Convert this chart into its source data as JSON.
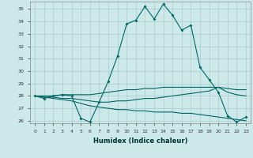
{
  "xlabel": "Humidex (Indice chaleur)",
  "background_color": "#cce8e8",
  "grid_color": "#aacccc",
  "line_color": "#006666",
  "xlim": [
    -0.5,
    23.5
  ],
  "ylim": [
    25.8,
    35.6
  ],
  "yticks": [
    26,
    27,
    28,
    29,
    30,
    31,
    32,
    33,
    34,
    35
  ],
  "xticks": [
    0,
    1,
    2,
    3,
    4,
    5,
    6,
    7,
    8,
    9,
    10,
    11,
    12,
    13,
    14,
    15,
    16,
    17,
    18,
    19,
    20,
    21,
    22,
    23
  ],
  "series1": [
    28.0,
    27.8,
    28.0,
    28.1,
    28.0,
    26.2,
    25.9,
    27.5,
    29.2,
    31.2,
    33.8,
    34.1,
    35.2,
    34.2,
    35.4,
    34.5,
    33.3,
    33.7,
    30.3,
    29.3,
    28.3,
    26.4,
    25.9,
    26.3
  ],
  "series2": [
    28.0,
    28.0,
    28.0,
    28.1,
    28.1,
    28.1,
    28.1,
    28.2,
    28.3,
    28.4,
    28.5,
    28.5,
    28.6,
    28.6,
    28.7,
    28.7,
    28.7,
    28.7,
    28.7,
    28.7,
    28.7,
    28.6,
    28.5,
    28.5
  ],
  "series3": [
    28.0,
    27.9,
    27.9,
    27.8,
    27.8,
    27.7,
    27.6,
    27.5,
    27.5,
    27.6,
    27.6,
    27.7,
    27.8,
    27.8,
    27.9,
    28.0,
    28.1,
    28.2,
    28.3,
    28.4,
    28.7,
    28.3,
    28.1,
    28.0
  ],
  "series4": [
    28.0,
    27.9,
    27.8,
    27.7,
    27.6,
    27.4,
    27.2,
    27.1,
    27.0,
    26.9,
    26.9,
    26.8,
    26.8,
    26.7,
    26.7,
    26.7,
    26.6,
    26.6,
    26.5,
    26.4,
    26.3,
    26.2,
    26.1,
    26.0
  ]
}
